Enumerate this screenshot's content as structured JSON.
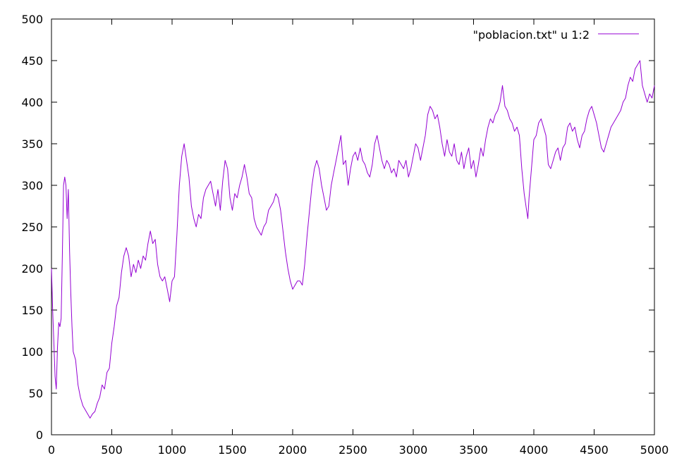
{
  "chart_data": {
    "type": "line",
    "title": "",
    "xlabel": "",
    "ylabel": "",
    "xlim": [
      0,
      5000
    ],
    "ylim": [
      0,
      500
    ],
    "xticks": [
      0,
      500,
      1000,
      1500,
      2000,
      2500,
      3000,
      3500,
      4000,
      4500,
      5000
    ],
    "yticks": [
      0,
      50,
      100,
      150,
      200,
      250,
      300,
      350,
      400,
      450,
      500
    ],
    "grid": false,
    "legend_position": "top-right",
    "series": [
      {
        "name": "\"poblacion.txt\" u 1:2",
        "color": "#9400d3",
        "points": [
          [
            0,
            200
          ],
          [
            10,
            150
          ],
          [
            20,
            110
          ],
          [
            30,
            70
          ],
          [
            40,
            55
          ],
          [
            50,
            105
          ],
          [
            60,
            135
          ],
          [
            70,
            130
          ],
          [
            80,
            140
          ],
          [
            90,
            215
          ],
          [
            100,
            300
          ],
          [
            110,
            310
          ],
          [
            120,
            300
          ],
          [
            130,
            260
          ],
          [
            140,
            295
          ],
          [
            150,
            220
          ],
          [
            160,
            170
          ],
          [
            170,
            130
          ],
          [
            180,
            100
          ],
          [
            200,
            90
          ],
          [
            220,
            60
          ],
          [
            240,
            45
          ],
          [
            260,
            35
          ],
          [
            280,
            30
          ],
          [
            300,
            25
          ],
          [
            320,
            20
          ],
          [
            340,
            25
          ],
          [
            360,
            28
          ],
          [
            380,
            38
          ],
          [
            400,
            45
          ],
          [
            420,
            60
          ],
          [
            440,
            55
          ],
          [
            460,
            75
          ],
          [
            480,
            80
          ],
          [
            500,
            110
          ],
          [
            520,
            130
          ],
          [
            540,
            155
          ],
          [
            560,
            165
          ],
          [
            580,
            195
          ],
          [
            600,
            215
          ],
          [
            620,
            225
          ],
          [
            640,
            215
          ],
          [
            660,
            190
          ],
          [
            680,
            205
          ],
          [
            700,
            195
          ],
          [
            720,
            210
          ],
          [
            740,
            200
          ],
          [
            760,
            215
          ],
          [
            780,
            210
          ],
          [
            800,
            230
          ],
          [
            820,
            245
          ],
          [
            840,
            230
          ],
          [
            860,
            235
          ],
          [
            880,
            205
          ],
          [
            900,
            190
          ],
          [
            920,
            185
          ],
          [
            940,
            190
          ],
          [
            960,
            175
          ],
          [
            980,
            160
          ],
          [
            1000,
            185
          ],
          [
            1020,
            190
          ],
          [
            1040,
            240
          ],
          [
            1060,
            300
          ],
          [
            1080,
            335
          ],
          [
            1100,
            350
          ],
          [
            1120,
            330
          ],
          [
            1140,
            310
          ],
          [
            1160,
            275
          ],
          [
            1180,
            260
          ],
          [
            1200,
            250
          ],
          [
            1220,
            265
          ],
          [
            1240,
            260
          ],
          [
            1260,
            285
          ],
          [
            1280,
            295
          ],
          [
            1300,
            300
          ],
          [
            1320,
            305
          ],
          [
            1340,
            290
          ],
          [
            1360,
            275
          ],
          [
            1380,
            295
          ],
          [
            1400,
            270
          ],
          [
            1420,
            305
          ],
          [
            1440,
            330
          ],
          [
            1460,
            320
          ],
          [
            1480,
            285
          ],
          [
            1500,
            270
          ],
          [
            1520,
            290
          ],
          [
            1540,
            285
          ],
          [
            1560,
            300
          ],
          [
            1580,
            310
          ],
          [
            1600,
            325
          ],
          [
            1620,
            310
          ],
          [
            1640,
            290
          ],
          [
            1660,
            285
          ],
          [
            1680,
            260
          ],
          [
            1700,
            250
          ],
          [
            1720,
            245
          ],
          [
            1740,
            240
          ],
          [
            1760,
            250
          ],
          [
            1780,
            255
          ],
          [
            1800,
            270
          ],
          [
            1820,
            275
          ],
          [
            1840,
            280
          ],
          [
            1860,
            290
          ],
          [
            1880,
            285
          ],
          [
            1900,
            270
          ],
          [
            1920,
            245
          ],
          [
            1940,
            220
          ],
          [
            1960,
            200
          ],
          [
            1980,
            185
          ],
          [
            2000,
            175
          ],
          [
            2020,
            180
          ],
          [
            2040,
            185
          ],
          [
            2060,
            185
          ],
          [
            2080,
            180
          ],
          [
            2100,
            205
          ],
          [
            2120,
            240
          ],
          [
            2140,
            270
          ],
          [
            2160,
            300
          ],
          [
            2180,
            320
          ],
          [
            2200,
            330
          ],
          [
            2220,
            320
          ],
          [
            2240,
            300
          ],
          [
            2260,
            285
          ],
          [
            2280,
            270
          ],
          [
            2300,
            275
          ],
          [
            2320,
            300
          ],
          [
            2340,
            315
          ],
          [
            2360,
            330
          ],
          [
            2380,
            345
          ],
          [
            2400,
            360
          ],
          [
            2420,
            325
          ],
          [
            2440,
            330
          ],
          [
            2460,
            300
          ],
          [
            2480,
            320
          ],
          [
            2500,
            335
          ],
          [
            2520,
            340
          ],
          [
            2540,
            330
          ],
          [
            2560,
            345
          ],
          [
            2580,
            330
          ],
          [
            2600,
            325
          ],
          [
            2620,
            315
          ],
          [
            2640,
            310
          ],
          [
            2660,
            325
          ],
          [
            2680,
            350
          ],
          [
            2700,
            360
          ],
          [
            2720,
            345
          ],
          [
            2740,
            330
          ],
          [
            2760,
            320
          ],
          [
            2780,
            330
          ],
          [
            2800,
            325
          ],
          [
            2820,
            315
          ],
          [
            2840,
            320
          ],
          [
            2860,
            310
          ],
          [
            2880,
            330
          ],
          [
            2900,
            325
          ],
          [
            2920,
            320
          ],
          [
            2940,
            330
          ],
          [
            2960,
            310
          ],
          [
            2980,
            320
          ],
          [
            3000,
            335
          ],
          [
            3020,
            350
          ],
          [
            3040,
            345
          ],
          [
            3060,
            330
          ],
          [
            3080,
            345
          ],
          [
            3100,
            360
          ],
          [
            3120,
            385
          ],
          [
            3140,
            395
          ],
          [
            3160,
            390
          ],
          [
            3180,
            380
          ],
          [
            3200,
            385
          ],
          [
            3220,
            370
          ],
          [
            3240,
            350
          ],
          [
            3260,
            335
          ],
          [
            3280,
            355
          ],
          [
            3300,
            340
          ],
          [
            3320,
            335
          ],
          [
            3340,
            350
          ],
          [
            3360,
            330
          ],
          [
            3380,
            325
          ],
          [
            3400,
            340
          ],
          [
            3420,
            320
          ],
          [
            3440,
            335
          ],
          [
            3460,
            345
          ],
          [
            3480,
            320
          ],
          [
            3500,
            330
          ],
          [
            3520,
            310
          ],
          [
            3540,
            325
          ],
          [
            3560,
            345
          ],
          [
            3580,
            335
          ],
          [
            3600,
            355
          ],
          [
            3620,
            370
          ],
          [
            3640,
            380
          ],
          [
            3660,
            375
          ],
          [
            3680,
            385
          ],
          [
            3700,
            390
          ],
          [
            3720,
            400
          ],
          [
            3740,
            420
          ],
          [
            3760,
            395
          ],
          [
            3780,
            390
          ],
          [
            3800,
            380
          ],
          [
            3820,
            375
          ],
          [
            3840,
            365
          ],
          [
            3860,
            370
          ],
          [
            3880,
            360
          ],
          [
            3900,
            320
          ],
          [
            3920,
            290
          ],
          [
            3940,
            270
          ],
          [
            3950,
            260
          ],
          [
            3960,
            285
          ],
          [
            3980,
            320
          ],
          [
            4000,
            355
          ],
          [
            4020,
            360
          ],
          [
            4040,
            375
          ],
          [
            4060,
            380
          ],
          [
            4080,
            370
          ],
          [
            4100,
            360
          ],
          [
            4120,
            325
          ],
          [
            4140,
            320
          ],
          [
            4160,
            330
          ],
          [
            4180,
            340
          ],
          [
            4200,
            345
          ],
          [
            4220,
            330
          ],
          [
            4240,
            345
          ],
          [
            4260,
            350
          ],
          [
            4280,
            370
          ],
          [
            4300,
            375
          ],
          [
            4320,
            365
          ],
          [
            4340,
            370
          ],
          [
            4360,
            355
          ],
          [
            4380,
            345
          ],
          [
            4400,
            360
          ],
          [
            4420,
            365
          ],
          [
            4440,
            380
          ],
          [
            4460,
            390
          ],
          [
            4480,
            395
          ],
          [
            4500,
            385
          ],
          [
            4520,
            375
          ],
          [
            4540,
            360
          ],
          [
            4560,
            345
          ],
          [
            4580,
            340
          ],
          [
            4600,
            350
          ],
          [
            4620,
            360
          ],
          [
            4640,
            370
          ],
          [
            4660,
            375
          ],
          [
            4680,
            380
          ],
          [
            4700,
            385
          ],
          [
            4720,
            390
          ],
          [
            4740,
            400
          ],
          [
            4760,
            405
          ],
          [
            4780,
            420
          ],
          [
            4800,
            430
          ],
          [
            4820,
            425
          ],
          [
            4840,
            440
          ],
          [
            4860,
            445
          ],
          [
            4880,
            450
          ],
          [
            4900,
            420
          ],
          [
            4920,
            410
          ],
          [
            4940,
            400
          ],
          [
            4960,
            410
          ],
          [
            4980,
            405
          ],
          [
            5000,
            420
          ]
        ]
      }
    ]
  }
}
